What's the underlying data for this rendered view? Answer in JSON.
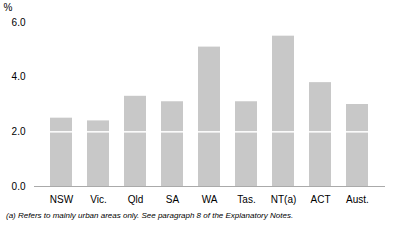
{
  "chart_data": {
    "type": "bar",
    "categories": [
      "NSW",
      "Vic.",
      "Qld",
      "SA",
      "WA",
      "Tas.",
      "NT(a)",
      "ACT",
      "Aust."
    ],
    "values": [
      2.5,
      2.4,
      3.3,
      3.1,
      5.1,
      3.1,
      5.5,
      3.8,
      3.0
    ],
    "color": "#c8c8c8",
    "divider_y": 2.0,
    "divider_color": "#ffffff",
    "ylabel": "%",
    "ylim": [
      0,
      6
    ],
    "yticks": [
      0,
      2,
      4,
      6
    ],
    "grid": false,
    "footnote": "(a) Refers to mainly urban areas only.  See paragraph 8 of the Explanatory Notes."
  }
}
